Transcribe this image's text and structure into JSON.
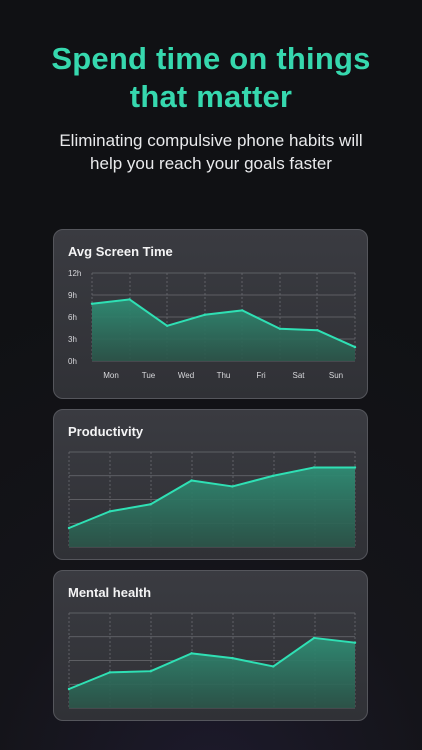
{
  "hero": {
    "title_line1": "Spend time on things",
    "title_line2": "that matter",
    "subtitle_line1": "Eliminating compulsive phone habits will",
    "subtitle_line2": "help you reach your goals faster"
  },
  "colors": {
    "accent": "#36d8ae",
    "line": "#2fe0b4",
    "area_top": "#2f8c74",
    "area_bottom": "#2b5549",
    "grid": "#6b6c72"
  },
  "chart_data": [
    {
      "type": "area",
      "title": "Avg Screen Time",
      "categories": [
        "Mon",
        "Tue",
        "Wed",
        "Thu",
        "Fri",
        "Sat",
        "Sun"
      ],
      "y_ticks": [
        "12h",
        "9h",
        "6h",
        "3h",
        "0h"
      ],
      "ylim": [
        0,
        12
      ],
      "x": [
        0,
        1,
        2,
        3,
        4,
        5,
        6,
        7
      ],
      "values": [
        7.8,
        8.4,
        4.8,
        6.3,
        6.9,
        4.4,
        4.2,
        1.9
      ]
    },
    {
      "type": "area",
      "title": "Productivity",
      "ylim": [
        0,
        4
      ],
      "x": [
        0,
        1,
        2,
        3,
        4,
        5,
        6,
        7
      ],
      "values": [
        0.8,
        1.5,
        1.8,
        2.8,
        2.55,
        3.0,
        3.35,
        3.35
      ]
    },
    {
      "type": "area",
      "title": "Mental health",
      "ylim": [
        0,
        4
      ],
      "x": [
        0,
        1,
        2,
        3,
        4,
        5,
        6,
        7
      ],
      "values": [
        0.8,
        1.5,
        1.55,
        2.3,
        2.1,
        1.75,
        2.95,
        2.75
      ]
    }
  ]
}
